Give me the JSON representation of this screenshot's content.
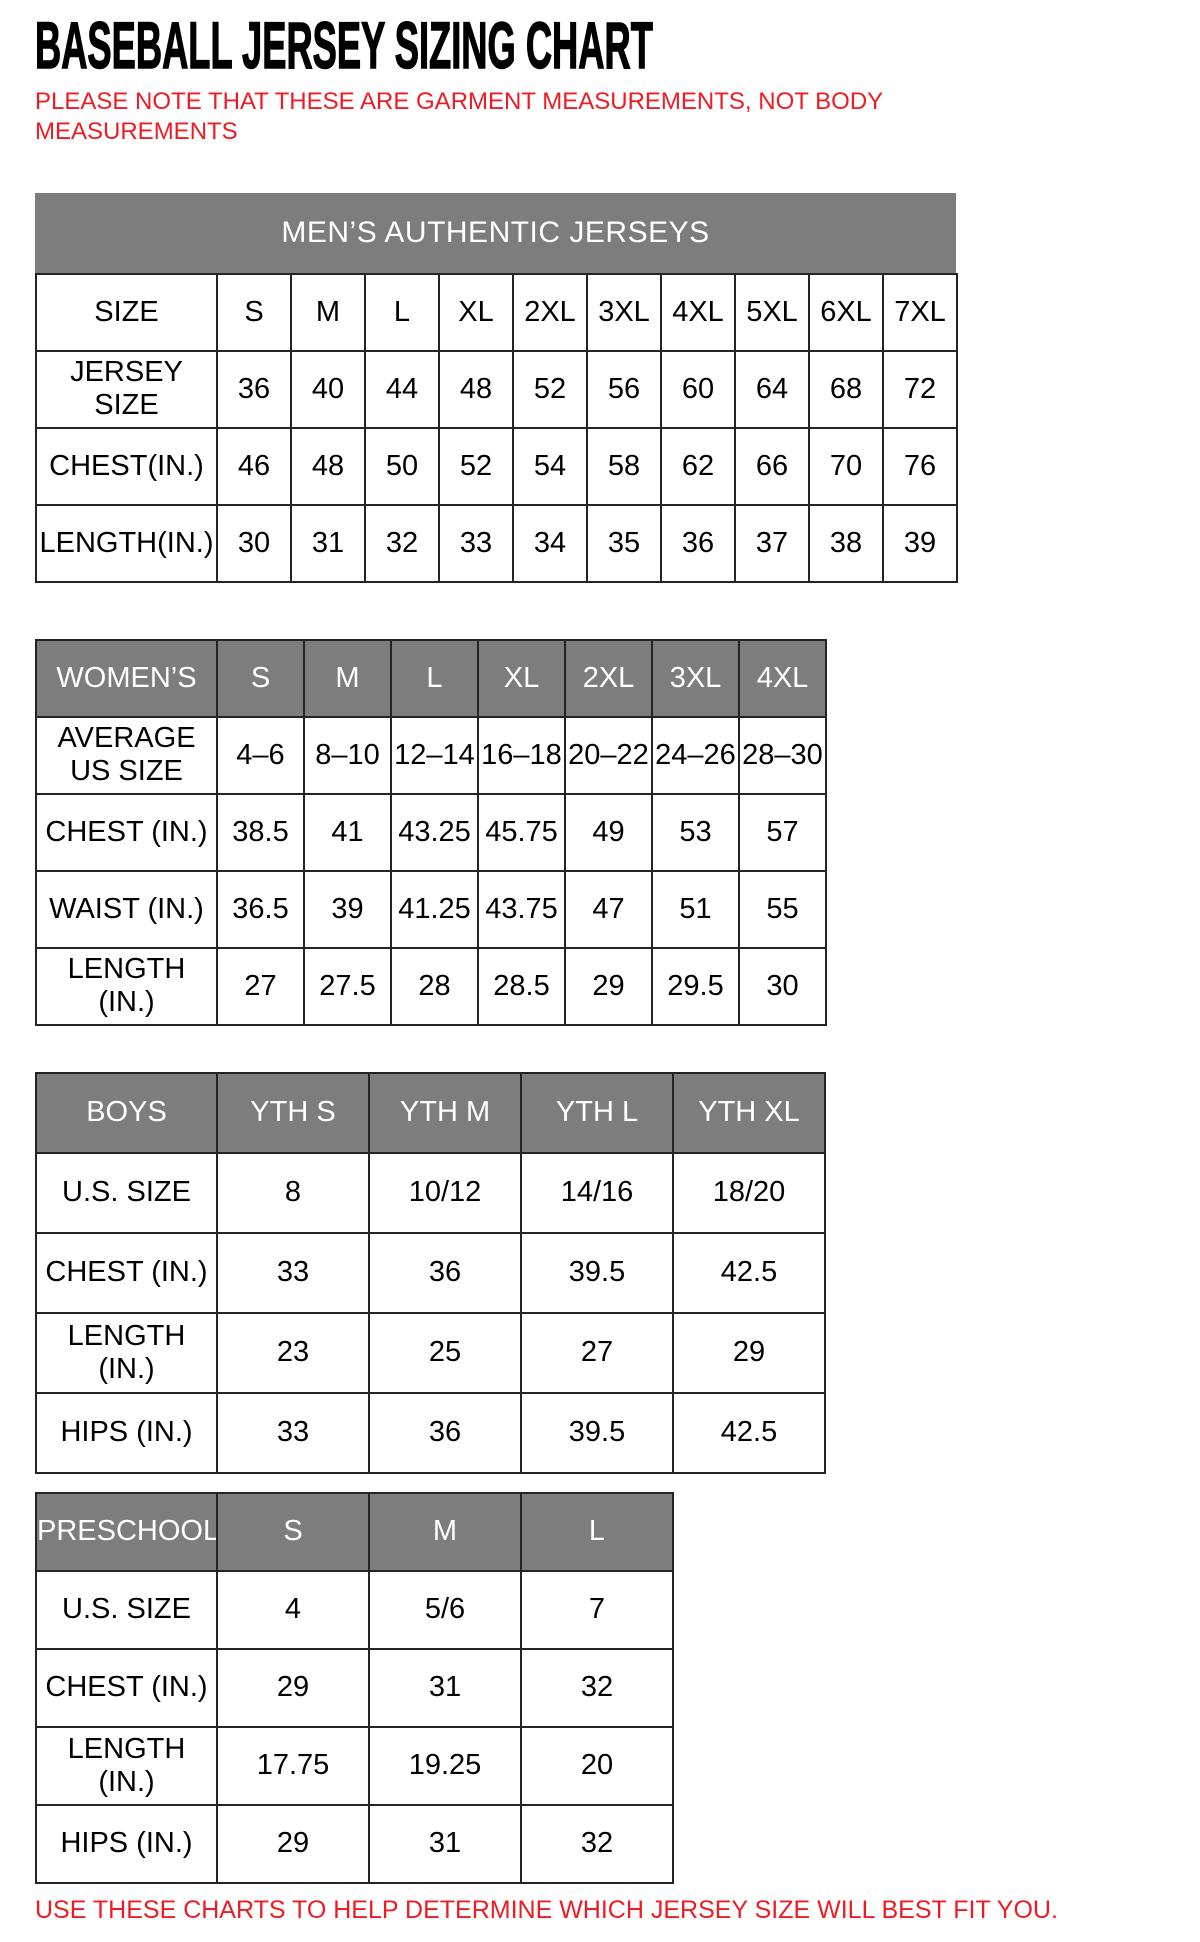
{
  "page": {
    "title": "BASEBALL JERSEY SIZING CHART",
    "note": "PLEASE NOTE THAT THESE ARE GARMENT MEASUREMENTS, NOT BODY MEASUREMENTS",
    "footer": "USE THESE CHARTS TO HELP DETERMINE WHICH JERSEY SIZE WILL BEST FIT YOU.",
    "colors": {
      "accent_red": "#ED1C24",
      "header_gray": "#7D7D7D",
      "border_dark": "#242424"
    }
  },
  "tables": {
    "mens": {
      "banner": "MEN’S AUTHENTIC JERSEYS",
      "rows": [
        {
          "label": "SIZE",
          "values": [
            "S",
            "M",
            "L",
            "XL",
            "2XL",
            "3XL",
            "4XL",
            "5XL",
            "6XL",
            "7XL"
          ]
        },
        {
          "label": "JERSEY SIZE",
          "values": [
            "36",
            "40",
            "44",
            "48",
            "52",
            "56",
            "60",
            "64",
            "68",
            "72"
          ]
        },
        {
          "label": "CHEST(IN.)",
          "values": [
            "46",
            "48",
            "50",
            "52",
            "54",
            "58",
            "62",
            "66",
            "70",
            "76"
          ]
        },
        {
          "label": "LENGTH(IN.)",
          "values": [
            "30",
            "31",
            "32",
            "33",
            "34",
            "35",
            "36",
            "37",
            "38",
            "39"
          ]
        }
      ]
    },
    "womens": {
      "header_row": {
        "label": "WOMEN’S",
        "values": [
          "S",
          "M",
          "L",
          "XL",
          "2XL",
          "3XL",
          "4XL"
        ]
      },
      "rows": [
        {
          "label": "AVERAGE\nUS SIZE",
          "values": [
            "4–6",
            "8–10",
            "12–14",
            "16–18",
            "20–22",
            "24–26",
            "28–30"
          ]
        },
        {
          "label": "CHEST (IN.)",
          "values": [
            "38.5",
            "41",
            "43.25",
            "45.75",
            "49",
            "53",
            "57"
          ]
        },
        {
          "label": "WAIST (IN.)",
          "values": [
            "36.5",
            "39",
            "41.25",
            "43.75",
            "47",
            "51",
            "55"
          ]
        },
        {
          "label": "LENGTH (IN.)",
          "values": [
            "27",
            "27.5",
            "28",
            "28.5",
            "29",
            "29.5",
            "30"
          ]
        }
      ]
    },
    "boys": {
      "header_row": {
        "label": "BOYS",
        "values": [
          "YTH S",
          "YTH M",
          "YTH L",
          "YTH XL"
        ]
      },
      "rows": [
        {
          "label": "U.S. SIZE",
          "values": [
            "8",
            "10/12",
            "14/16",
            "18/20"
          ]
        },
        {
          "label": "CHEST (IN.)",
          "values": [
            "33",
            "36",
            "39.5",
            "42.5"
          ]
        },
        {
          "label": "LENGTH (IN.)",
          "values": [
            "23",
            "25",
            "27",
            "29"
          ]
        },
        {
          "label": "HIPS (IN.)",
          "values": [
            "33",
            "36",
            "39.5",
            "42.5"
          ]
        }
      ]
    },
    "preschool": {
      "header_row": {
        "label": "PRESCHOOL",
        "values": [
          "S",
          "M",
          "L"
        ]
      },
      "rows": [
        {
          "label": "U.S. SIZE",
          "values": [
            "4",
            "5/6",
            "7"
          ]
        },
        {
          "label": "CHEST (IN.)",
          "values": [
            "29",
            "31",
            "32"
          ]
        },
        {
          "label": "LENGTH (IN.)",
          "values": [
            "17.75",
            "19.25",
            "20"
          ]
        },
        {
          "label": "HIPS (IN.)",
          "values": [
            "29",
            "31",
            "32"
          ]
        }
      ]
    }
  }
}
